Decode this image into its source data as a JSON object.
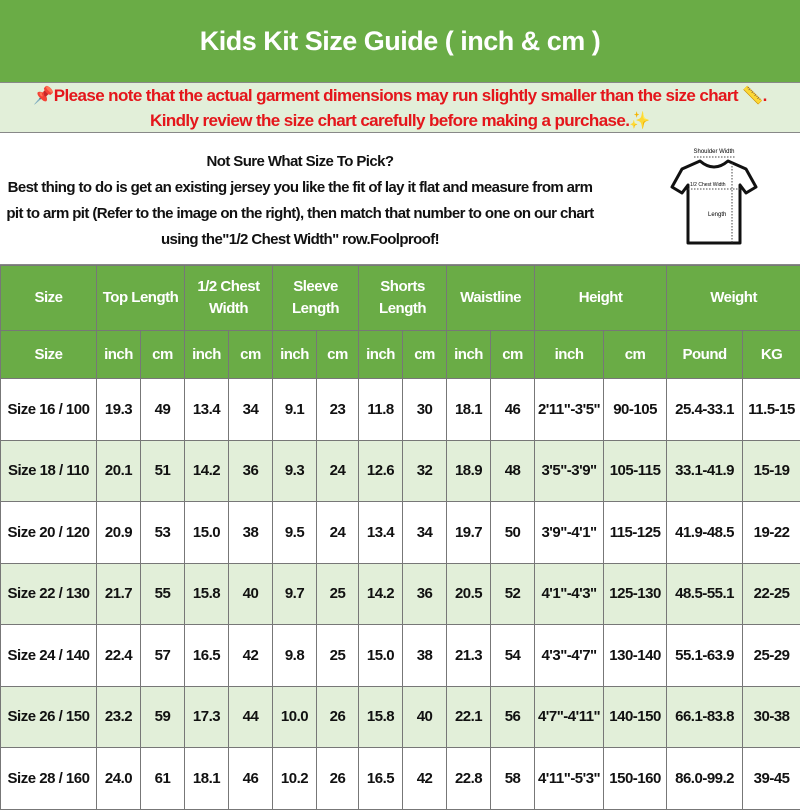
{
  "title": "Kids Kit Size Guide ( inch & cm )",
  "notes": {
    "line1": "Please note that the actual garment dimensions may run slightly smaller than the size chart",
    "line1_suffix": ".",
    "line2": "Kindly review the size chart carefully before making a purchase.",
    "pin_icon": "pushpin-icon",
    "ruler_icon": "ruler-icon",
    "sparkle_icon": "sparkles-icon",
    "note_color": "#e4161b"
  },
  "info": {
    "heading": "Not Sure What Size To Pick?",
    "body": "Best thing to do is get an existing jersey you like the fit of lay it flat and measure from arm pit to arm pit (Refer to the image on the right), then match that number to one on our chart using the\"1/2 Chest Width\" row.Foolproof!",
    "diagram": {
      "shoulder": "Shoulder Width",
      "chest": "1/2 Chest Width",
      "length": "Length"
    }
  },
  "colors": {
    "header": "#6aac46",
    "alt_row": "#e2efd9"
  },
  "table": {
    "groups": [
      {
        "label": "Size",
        "span": 1
      },
      {
        "label": "Top Length",
        "span": 2
      },
      {
        "label": "1/2 Chest Width",
        "span": 2
      },
      {
        "label": "Sleeve Length",
        "span": 2
      },
      {
        "label": "Shorts Length",
        "span": 2
      },
      {
        "label": "Waistline",
        "span": 2
      },
      {
        "label": "Height",
        "span": 2
      },
      {
        "label": "Weight",
        "span": 2
      }
    ],
    "units": [
      "Size",
      "inch",
      "cm",
      "inch",
      "cm",
      "inch",
      "cm",
      "inch",
      "cm",
      "inch",
      "cm",
      "inch",
      "cm",
      "Pound",
      "KG"
    ],
    "rows": [
      [
        "Size 16 / 100",
        "19.3",
        "49",
        "13.4",
        "34",
        "9.1",
        "23",
        "11.8",
        "30",
        "18.1",
        "46",
        "2'11\"-3'5\"",
        "90-105",
        "25.4-33.1",
        "11.5-15"
      ],
      [
        "Size 18 / 110",
        "20.1",
        "51",
        "14.2",
        "36",
        "9.3",
        "24",
        "12.6",
        "32",
        "18.9",
        "48",
        "3'5\"-3'9\"",
        "105-115",
        "33.1-41.9",
        "15-19"
      ],
      [
        "Size 20 / 120",
        "20.9",
        "53",
        "15.0",
        "38",
        "9.5",
        "24",
        "13.4",
        "34",
        "19.7",
        "50",
        "3'9\"-4'1\"",
        "115-125",
        "41.9-48.5",
        "19-22"
      ],
      [
        "Size 22 / 130",
        "21.7",
        "55",
        "15.8",
        "40",
        "9.7",
        "25",
        "14.2",
        "36",
        "20.5",
        "52",
        "4'1\"-4'3\"",
        "125-130",
        "48.5-55.1",
        "22-25"
      ],
      [
        "Size 24 / 140",
        "22.4",
        "57",
        "16.5",
        "42",
        "9.8",
        "25",
        "15.0",
        "38",
        "21.3",
        "54",
        "4'3\"-4'7\"",
        "130-140",
        "55.1-63.9",
        "25-29"
      ],
      [
        "Size 26 / 150",
        "23.2",
        "59",
        "17.3",
        "44",
        "10.0",
        "26",
        "15.8",
        "40",
        "22.1",
        "56",
        "4'7\"-4'11\"",
        "140-150",
        "66.1-83.8",
        "30-38"
      ],
      [
        "Size 28 / 160",
        "24.0",
        "61",
        "18.1",
        "46",
        "10.2",
        "26",
        "16.5",
        "42",
        "22.8",
        "58",
        "4'11\"-5'3\"",
        "150-160",
        "86.0-99.2",
        "39-45"
      ]
    ]
  }
}
